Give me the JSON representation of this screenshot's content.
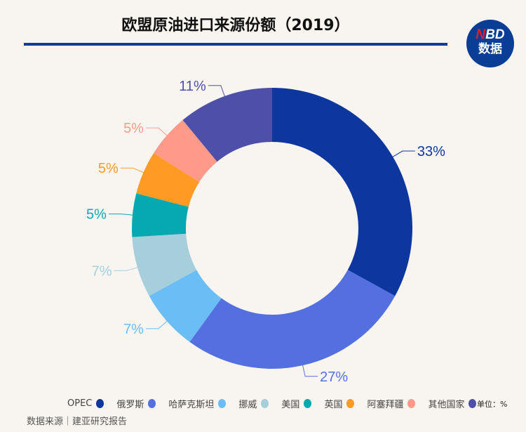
{
  "title": "欧盟原油进口来源份额（2019）",
  "logo": {
    "n": "N",
    "bd": "BD",
    "sub": "数据"
  },
  "unit": "单位：%",
  "source": "数据来源｜建亚研究报告",
  "chart_data": {
    "type": "pie",
    "donut": true,
    "title": "欧盟原油进口来源份额（2019）",
    "categories": [
      "OPEC",
      "俄罗斯",
      "哈萨克斯坦",
      "挪威",
      "美国",
      "英国",
      "阿塞拜疆",
      "其他国家"
    ],
    "values": [
      33,
      27,
      7,
      7,
      5,
      5,
      5,
      11
    ],
    "labels": [
      "33%",
      "27%",
      "7%",
      "7%",
      "5%",
      "5%",
      "5%",
      "11%"
    ],
    "colors": [
      "#0d369f",
      "#5470e0",
      "#6bbdf5",
      "#a6cfdb",
      "#06a9b0",
      "#ff9a25",
      "#ff9a8b",
      "#4e4fa8"
    ],
    "legend_position": "bottom",
    "unit": "%"
  }
}
